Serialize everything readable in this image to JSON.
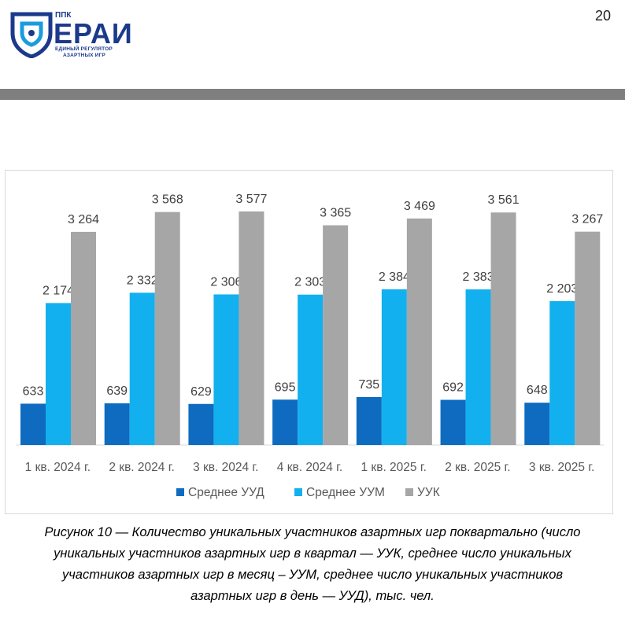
{
  "header": {
    "logo": {
      "small_text": "ППК",
      "name": "ЕРАИ",
      "tagline_1": "ЕДИНЫЙ РЕГУЛЯТОР",
      "tagline_2": "АЗАРТНЫХ ИГР",
      "color": "#1b3a8c"
    },
    "page_number": "20"
  },
  "chart_data": {
    "type": "bar",
    "title": "",
    "xlabel": "",
    "ylabel": "",
    "categories": [
      "1 кв. 2024 г.",
      "2 кв. 2024 г.",
      "3 кв. 2024 г.",
      "4 кв. 2024 г.",
      "1 кв. 2025 г.",
      "2 кв. 2025 г.",
      "3 кв. 2025 г."
    ],
    "series": [
      {
        "name": "Среднее УУД",
        "color": "#0e6bc0",
        "values": [
          633,
          639,
          629,
          695,
          735,
          692,
          648
        ],
        "labels": [
          "633",
          "639",
          "629",
          "695",
          "735",
          "692",
          "648"
        ]
      },
      {
        "name": "Среднее УУМ",
        "color": "#12b0ef",
        "values": [
          2174,
          2332,
          2306,
          2303,
          2384,
          2383,
          2203
        ],
        "labels": [
          "2 174",
          "2 332",
          "2 306",
          "2 303",
          "2 384",
          "2 383",
          "2 203"
        ]
      },
      {
        "name": "УУК",
        "color": "#a6a6a6",
        "values": [
          3264,
          3568,
          3577,
          3365,
          3469,
          3561,
          3267
        ],
        "labels": [
          "3 264",
          "3 568",
          "3 577",
          "3 365",
          "3 469",
          "3 561",
          "3 267"
        ]
      }
    ],
    "ylim": [
      0,
      3600
    ],
    "grid": false,
    "legend_position": "bottom"
  },
  "caption": {
    "lines": [
      "Рисунок 10 — Количество уникальных участников азартных игр поквартально (число",
      "уникальных участников азартных игр в квартал — УУК, среднее число уникальных",
      "участников азартных игр в месяц – УУМ, среднее число уникальных участников",
      "азартных игр в день — УУД), тыс. чел."
    ]
  }
}
